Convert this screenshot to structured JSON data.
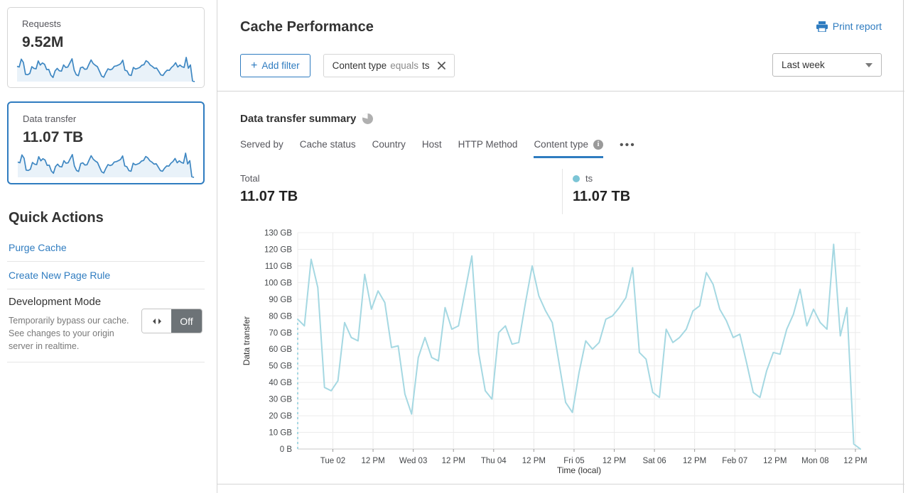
{
  "sidebar": {
    "cards": [
      {
        "label": "Requests",
        "value": "9.52M"
      },
      {
        "label": "Data transfer",
        "value": "11.07 TB",
        "selected": true
      }
    ],
    "quick_actions": {
      "title": "Quick Actions",
      "links": [
        {
          "label": "Purge Cache"
        },
        {
          "label": "Create New Page Rule"
        }
      ],
      "dev_mode": {
        "label": "Development Mode",
        "description": "Temporarily bypass our cache. See changes to your origin server in realtime.",
        "toggle_state": "Off"
      }
    }
  },
  "header": {
    "title": "Cache Performance",
    "print_label": "Print report",
    "add_filter": {
      "plus": "+",
      "label": "Add filter"
    },
    "filter_chip": {
      "field": "Content type",
      "operator": "equals",
      "value": "ts"
    },
    "time_range": "Last week"
  },
  "summary": {
    "title": "Data transfer summary",
    "tabs": [
      {
        "label": "Served by",
        "active": false
      },
      {
        "label": "Cache status",
        "active": false
      },
      {
        "label": "Country",
        "active": false
      },
      {
        "label": "Host",
        "active": false
      },
      {
        "label": "HTTP Method",
        "active": false
      },
      {
        "label": "Content type",
        "active": true
      }
    ],
    "more_label": "•••",
    "info_glyph": "i",
    "total_label": "Total",
    "total_value": "11.07 TB",
    "legend": {
      "name": "ts",
      "value": "11.07 TB",
      "color": "#7cc5d6"
    }
  },
  "chart_data": {
    "type": "line",
    "title": "Data transfer summary — ts (Last week)",
    "xlabel": "Time (local)",
    "ylabel": "Data transfer",
    "unit": "GB",
    "ylim": [
      0,
      130
    ],
    "grid": true,
    "y_ticks": [
      "0 B",
      "10 GB",
      "20 GB",
      "30 GB",
      "40 GB",
      "50 GB",
      "60 GB",
      "70 GB",
      "80 GB",
      "90 GB",
      "100 GB",
      "110 GB",
      "120 GB",
      "130 GB"
    ],
    "x_ticks": [
      "Tue 02",
      "12 PM",
      "Wed 03",
      "12 PM",
      "Thu 04",
      "12 PM",
      "Fri 05",
      "12 PM",
      "Sat 06",
      "12 PM",
      "Feb 07",
      "12 PM",
      "Mon 08",
      "12 PM"
    ],
    "x_tick_interval_hours": 12,
    "x_first_tick_offset_hours": 10.5,
    "duration_hours": 168,
    "point_interval_hours": 2,
    "start_dashed": true,
    "series": [
      {
        "name": "ts",
        "color": "#a5d8e2",
        "values_gb": [
          78,
          74,
          114,
          97,
          37,
          35,
          41,
          76,
          67,
          65,
          105,
          84,
          95,
          88,
          61,
          62,
          33,
          21,
          55,
          67,
          55,
          53,
          85,
          72,
          74,
          95,
          116,
          58,
          35,
          30,
          70,
          74,
          63,
          64,
          88,
          110,
          92,
          83,
          76,
          52,
          28,
          22,
          46,
          65,
          60,
          64,
          78,
          80,
          85,
          91,
          109,
          58,
          54,
          34,
          31,
          72,
          64,
          67,
          72,
          83,
          86,
          106,
          99,
          84,
          77,
          67,
          69,
          52,
          34,
          31,
          47,
          58,
          57,
          72,
          81,
          96,
          74,
          84,
          76,
          72,
          123,
          68,
          85,
          3,
          0
        ]
      }
    ]
  },
  "colors": {
    "accent_blue": "#2f7cc0",
    "sparkline_stroke": "#3e87c2",
    "sparkline_fill": "#e9f2f9",
    "chart_line": "#a5d8e2",
    "legend_dot": "#7cc5d6",
    "grid_line": "#ececec",
    "axis_line": "#c9c9c9",
    "divider": "#d5d5d5",
    "toggle_gray": "#6d7377"
  }
}
